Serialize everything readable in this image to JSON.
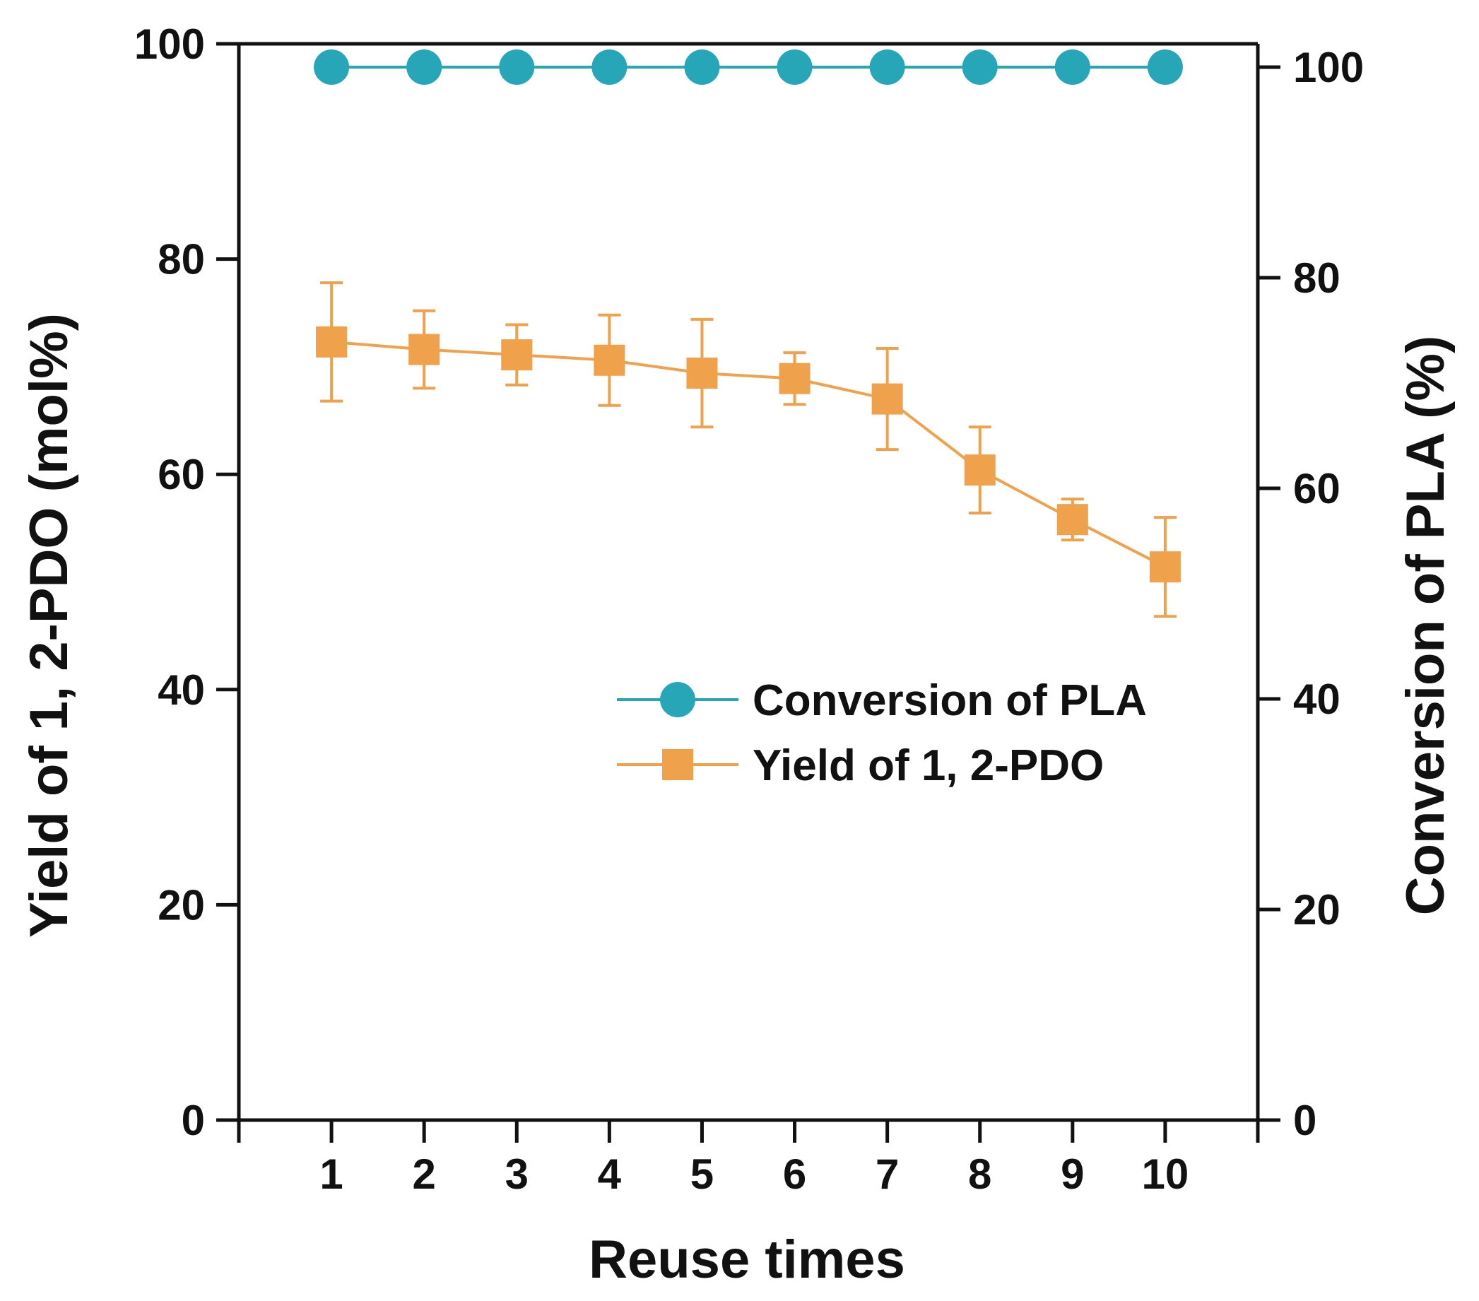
{
  "chart_data": {
    "type": "line",
    "title": "",
    "xlabel": "Reuse times",
    "ylabel_left": "Yield of 1, 2-PDO (mol%)",
    "ylabel_right": "Conversion of PLA (%)",
    "x": [
      1,
      2,
      3,
      4,
      5,
      6,
      7,
      8,
      9,
      10
    ],
    "x_tick_labels": [
      "1",
      "2",
      "3",
      "4",
      "5",
      "6",
      "7",
      "8",
      "9",
      "10"
    ],
    "xlim": [
      0,
      11
    ],
    "ylim_left": [
      0,
      100
    ],
    "ylim_right": [
      0,
      100
    ],
    "y_left_ticks": [
      "0",
      "20",
      "40",
      "60",
      "80",
      "100"
    ],
    "y_right_ticks": [
      "0",
      "20",
      "40",
      "60",
      "80",
      "100"
    ],
    "grid": false,
    "legend_position": "center-right",
    "series": [
      {
        "name": "Conversion of PLA",
        "axis": "right",
        "marker": "circle",
        "color": "#27a6b7",
        "values": [
          100,
          100,
          100,
          100,
          100,
          100,
          100,
          100,
          100,
          100
        ]
      },
      {
        "name": "Yield of 1, 2-PDO",
        "axis": "left",
        "marker": "square",
        "color": "#f0a14c",
        "values": [
          72.3,
          71.6,
          71.1,
          70.6,
          69.4,
          68.9,
          67.0,
          60.4,
          55.8,
          51.4
        ],
        "errors": [
          5.5,
          3.6,
          2.8,
          4.2,
          5.0,
          2.4,
          4.7,
          4.0,
          1.9,
          4.6
        ]
      }
    ]
  }
}
